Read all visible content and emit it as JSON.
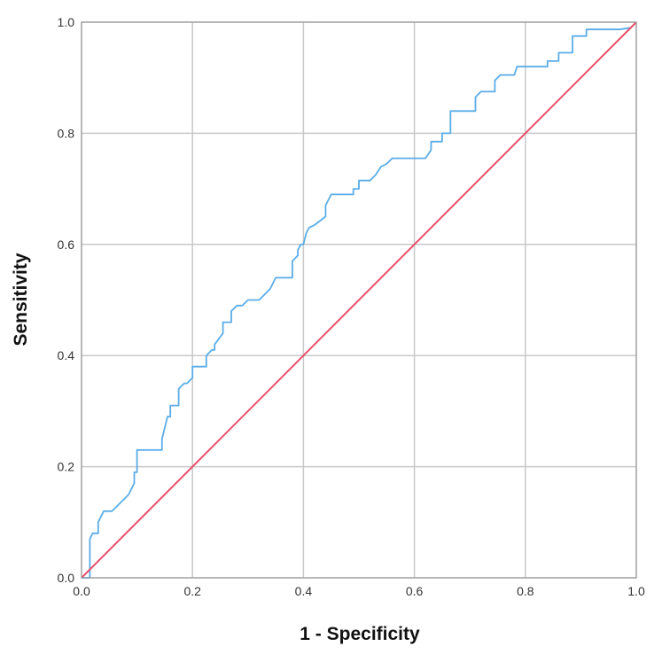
{
  "chart_data": {
    "type": "line",
    "title": "",
    "xlabel": "1 - Specificity",
    "ylabel": "Sensitivity",
    "xlim": [
      0,
      1
    ],
    "ylim": [
      0,
      1
    ],
    "xticks": [
      "0.0",
      "0.2",
      "0.4",
      "0.6",
      "0.8",
      "1.0"
    ],
    "yticks": [
      "0.0",
      "0.2",
      "0.4",
      "0.6",
      "0.8",
      "1.0"
    ],
    "grid": true,
    "legend": "none",
    "series": [
      {
        "color": "#5aade8",
        "points": [
          [
            0.0,
            0.0
          ],
          [
            0.01,
            0.0
          ],
          [
            0.015,
            0.0
          ],
          [
            0.015,
            0.07
          ],
          [
            0.02,
            0.08
          ],
          [
            0.03,
            0.08
          ],
          [
            0.03,
            0.1
          ],
          [
            0.04,
            0.12
          ],
          [
            0.055,
            0.12
          ],
          [
            0.07,
            0.135
          ],
          [
            0.085,
            0.15
          ],
          [
            0.09,
            0.16
          ],
          [
            0.095,
            0.17
          ],
          [
            0.095,
            0.19
          ],
          [
            0.1,
            0.19
          ],
          [
            0.1,
            0.23
          ],
          [
            0.145,
            0.23
          ],
          [
            0.145,
            0.25
          ],
          [
            0.15,
            0.27
          ],
          [
            0.155,
            0.29
          ],
          [
            0.16,
            0.29
          ],
          [
            0.16,
            0.31
          ],
          [
            0.175,
            0.31
          ],
          [
            0.175,
            0.34
          ],
          [
            0.185,
            0.35
          ],
          [
            0.19,
            0.35
          ],
          [
            0.2,
            0.36
          ],
          [
            0.2,
            0.38
          ],
          [
            0.225,
            0.38
          ],
          [
            0.225,
            0.4
          ],
          [
            0.235,
            0.41
          ],
          [
            0.24,
            0.41
          ],
          [
            0.24,
            0.42
          ],
          [
            0.255,
            0.44
          ],
          [
            0.255,
            0.46
          ],
          [
            0.27,
            0.46
          ],
          [
            0.27,
            0.48
          ],
          [
            0.28,
            0.49
          ],
          [
            0.29,
            0.49
          ],
          [
            0.3,
            0.5
          ],
          [
            0.32,
            0.5
          ],
          [
            0.33,
            0.51
          ],
          [
            0.34,
            0.52
          ],
          [
            0.35,
            0.54
          ],
          [
            0.38,
            0.54
          ],
          [
            0.38,
            0.57
          ],
          [
            0.39,
            0.58
          ],
          [
            0.39,
            0.59
          ],
          [
            0.395,
            0.6
          ],
          [
            0.4,
            0.6
          ],
          [
            0.405,
            0.62
          ],
          [
            0.41,
            0.63
          ],
          [
            0.42,
            0.635
          ],
          [
            0.44,
            0.65
          ],
          [
            0.44,
            0.67
          ],
          [
            0.45,
            0.69
          ],
          [
            0.49,
            0.69
          ],
          [
            0.49,
            0.7
          ],
          [
            0.5,
            0.7
          ],
          [
            0.5,
            0.715
          ],
          [
            0.52,
            0.715
          ],
          [
            0.53,
            0.725
          ],
          [
            0.54,
            0.74
          ],
          [
            0.55,
            0.745
          ],
          [
            0.56,
            0.755
          ],
          [
            0.62,
            0.755
          ],
          [
            0.63,
            0.77
          ],
          [
            0.63,
            0.785
          ],
          [
            0.65,
            0.785
          ],
          [
            0.65,
            0.8
          ],
          [
            0.665,
            0.8
          ],
          [
            0.665,
            0.84
          ],
          [
            0.71,
            0.84
          ],
          [
            0.71,
            0.865
          ],
          [
            0.72,
            0.875
          ],
          [
            0.745,
            0.875
          ],
          [
            0.745,
            0.895
          ],
          [
            0.755,
            0.905
          ],
          [
            0.78,
            0.905
          ],
          [
            0.785,
            0.92
          ],
          [
            0.84,
            0.92
          ],
          [
            0.84,
            0.93
          ],
          [
            0.86,
            0.93
          ],
          [
            0.86,
            0.945
          ],
          [
            0.885,
            0.945
          ],
          [
            0.885,
            0.975
          ],
          [
            0.91,
            0.975
          ],
          [
            0.91,
            0.987
          ],
          [
            0.97,
            0.987
          ],
          [
            0.97,
            0.987
          ],
          [
            0.99,
            0.99
          ],
          [
            1.0,
            1.0
          ]
        ]
      },
      {
        "color": "#e8506b",
        "points": [
          [
            0.0,
            0.0
          ],
          [
            1.0,
            1.0
          ]
        ]
      }
    ]
  }
}
